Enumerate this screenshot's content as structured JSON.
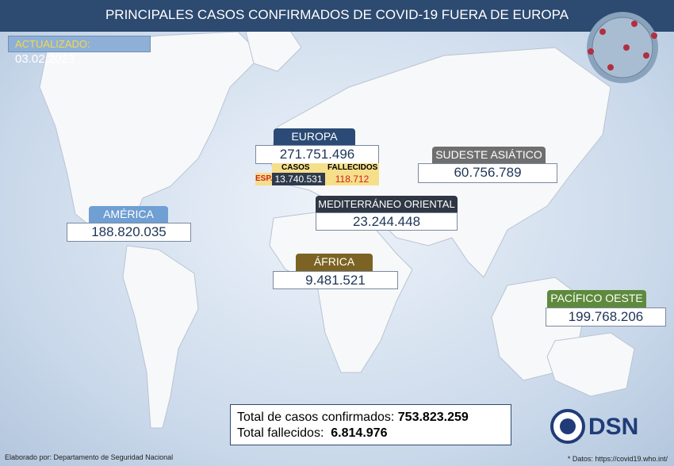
{
  "header": {
    "title": "PRINCIPALES CASOS CONFIRMADOS DE COVID-19 FUERA DE EUROPA",
    "updated_label": "ACTUALIZADO:",
    "updated_date": "03.02.2023"
  },
  "regions": [
    {
      "name": "EUROPA",
      "value": "271.751.496"
    },
    {
      "name": "SUDESTE ASIÁTICO",
      "value": "60.756.789"
    },
    {
      "name": "MEDITERRÁNEO ORIENTAL",
      "value": "23.244.448"
    },
    {
      "name": "AMÉRICA",
      "value": "188.820.035"
    },
    {
      "name": "ÁFRICA",
      "value": "9.481.521"
    },
    {
      "name": "PACÍFICO OESTE",
      "value": "199.768.206"
    }
  ],
  "spain": {
    "label": "ESP.",
    "cases_header": "CASOS",
    "deaths_header": "FALLECIDOS",
    "cases": "13.740.531",
    "deaths": "118.712"
  },
  "totals": {
    "cases_label": "Total de casos confirmados:",
    "cases": "753.823.259",
    "deaths_label": "Total fallecidos:",
    "deaths": "6.814.976"
  },
  "logo": "DSN",
  "footer": {
    "credit": "Elaborado por: Departamento de Seguridad Nacional",
    "source": "* Datos: https://covid19.who.int/"
  }
}
